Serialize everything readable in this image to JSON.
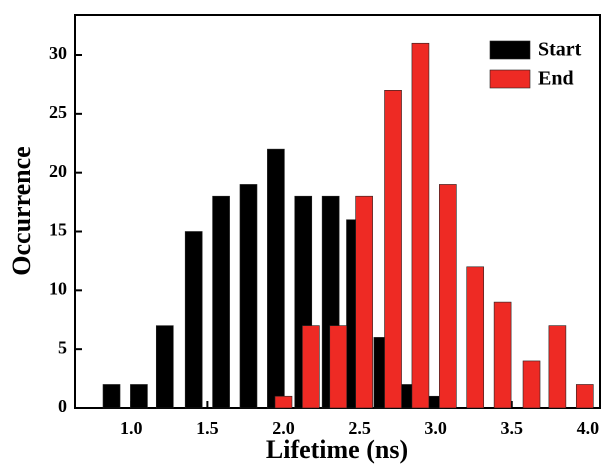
{
  "chart_data": {
    "type": "bar",
    "xlabel": "Lifetime (ns)",
    "ylabel": "Occurrence",
    "series": [
      {
        "name": "Start",
        "color": "#000000",
        "x": [
          0.87,
          1.05,
          1.22,
          1.41,
          1.59,
          1.77,
          1.95,
          2.13,
          2.31,
          2.47,
          2.65,
          2.82,
          3.0
        ],
        "values": [
          2,
          2,
          7,
          15,
          18,
          19,
          22,
          18,
          18,
          16,
          6,
          2,
          1
        ]
      },
      {
        "name": "End",
        "color": "#ee2a24",
        "x": [
          2.0,
          2.18,
          2.36,
          2.53,
          2.72,
          2.9,
          3.08,
          3.26,
          3.44,
          3.63,
          3.8,
          3.98
        ],
        "values": [
          1,
          7,
          7,
          18,
          27,
          31,
          19,
          12,
          9,
          4,
          7,
          2
        ]
      }
    ],
    "xlim": [
      0.63,
      4.08
    ],
    "xticks": [
      {
        "value": 1,
        "label": "1.0"
      },
      {
        "value": 1.5,
        "label": "1.5"
      },
      {
        "value": 2,
        "label": "2.0"
      },
      {
        "value": 2.5,
        "label": "2.5"
      },
      {
        "value": 3,
        "label": "3.0"
      },
      {
        "value": 3.5,
        "label": "3.5"
      },
      {
        "value": 4,
        "label": "4.0"
      }
    ],
    "ylim": [
      0,
      33.4
    ],
    "yticks": [
      0,
      5,
      10,
      15,
      20,
      25,
      30
    ],
    "grid": false,
    "legend": "upper-right"
  }
}
